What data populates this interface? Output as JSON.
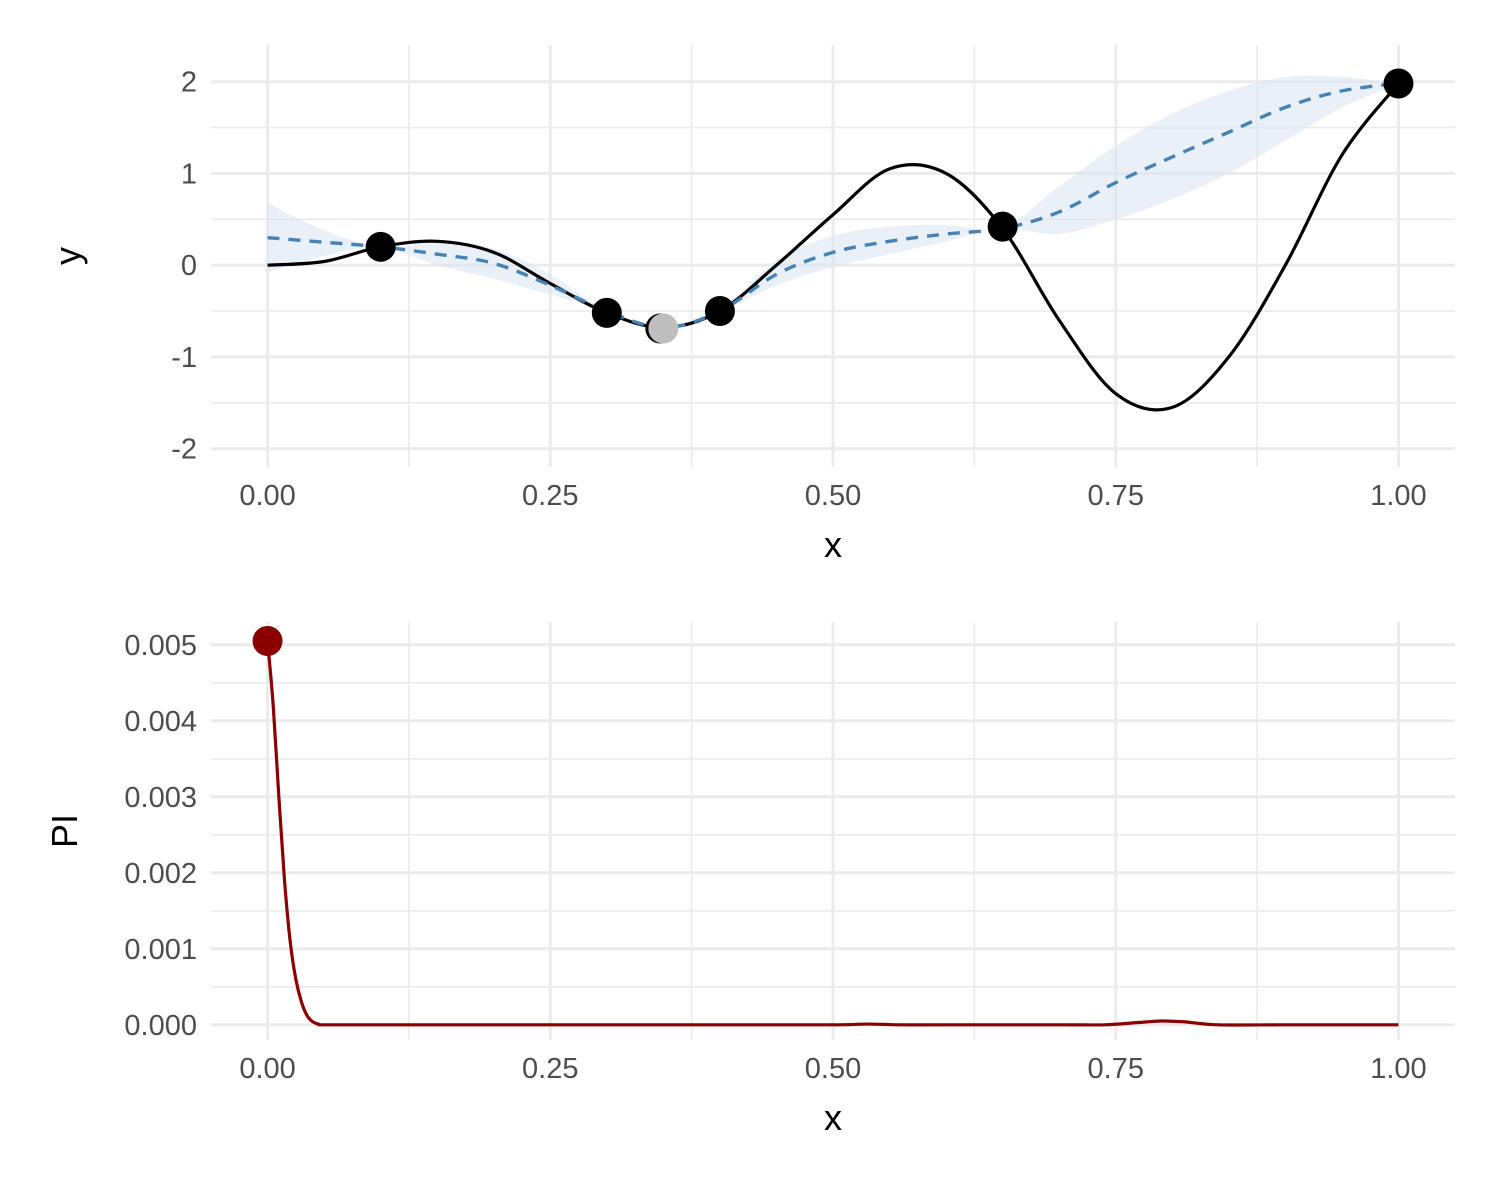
{
  "colors": {
    "background": "#ffffff",
    "grid": "#ebebeb",
    "true_function": "#000000",
    "gp_mean": "#4682b4",
    "gp_band": "#dce6f4",
    "observed_point": "#000000",
    "candidate_point": "#bebebe",
    "pi_line": "#8b0000",
    "pi_point": "#8b0000"
  },
  "chart_data": [
    {
      "type": "line",
      "xlabel": "x",
      "ylabel": "y",
      "xlim": [
        -0.05,
        1.05
      ],
      "ylim": [
        -2.2,
        2.4
      ],
      "grid": true,
      "legend": "none",
      "x_ticks": [
        0,
        0.25,
        0.5,
        0.75,
        1
      ],
      "x_tick_labels": [
        "0.00",
        "0.25",
        "0.50",
        "0.75",
        "1.00"
      ],
      "y_ticks": [
        -2,
        -1,
        0,
        1,
        2
      ],
      "y_tick_labels": [
        "-2",
        "-1",
        "0",
        "1",
        "2"
      ],
      "true_function": {
        "x": [
          0,
          0.05,
          0.1,
          0.15,
          0.2,
          0.25,
          0.3,
          0.35,
          0.4,
          0.45,
          0.5,
          0.55,
          0.6,
          0.65,
          0.7,
          0.75,
          0.8,
          0.85,
          0.9,
          0.95,
          1
        ],
        "y": [
          0.0,
          0.04,
          0.2,
          0.26,
          0.14,
          -0.2,
          -0.52,
          -0.68,
          -0.5,
          0.0,
          0.55,
          1.05,
          1.0,
          0.4,
          -0.6,
          -1.4,
          -1.55,
          -1.0,
          0.0,
          1.2,
          1.98
        ]
      },
      "gp_mean": {
        "x": [
          0,
          0.05,
          0.1,
          0.15,
          0.2,
          0.25,
          0.3,
          0.35,
          0.4,
          0.45,
          0.5,
          0.55,
          0.6,
          0.65,
          0.7,
          0.75,
          0.8,
          0.85,
          0.9,
          0.95,
          1
        ],
        "y": [
          0.3,
          0.25,
          0.2,
          0.12,
          0.02,
          -0.22,
          -0.5,
          -0.68,
          -0.5,
          -0.1,
          0.14,
          0.26,
          0.34,
          0.4,
          0.58,
          0.9,
          1.18,
          1.45,
          1.72,
          1.9,
          1.98
        ]
      },
      "gp_band": {
        "x": [
          0,
          0.05,
          0.1,
          0.15,
          0.2,
          0.25,
          0.3,
          0.35,
          0.4,
          0.45,
          0.5,
          0.55,
          0.6,
          0.65,
          0.7,
          0.75,
          0.8,
          0.85,
          0.9,
          0.95,
          1
        ],
        "lower": [
          -0.08,
          0.1,
          0.2,
          0.0,
          -0.15,
          -0.32,
          -0.5,
          -0.68,
          -0.5,
          -0.22,
          -0.02,
          0.12,
          0.26,
          0.4,
          0.34,
          0.5,
          0.72,
          1.0,
          1.36,
          1.72,
          1.98
        ],
        "upper": [
          0.68,
          0.38,
          0.2,
          0.24,
          0.18,
          -0.1,
          -0.5,
          -0.68,
          -0.5,
          0.05,
          0.32,
          0.42,
          0.44,
          0.4,
          0.86,
          1.3,
          1.65,
          1.9,
          2.05,
          2.05,
          1.98
        ]
      },
      "observed_points": {
        "x": [
          0.1,
          0.3,
          0.4,
          0.65,
          1.0
        ],
        "y": [
          0.2,
          -0.52,
          -0.5,
          0.42,
          1.98
        ]
      },
      "candidate_point": {
        "x": 0.35,
        "y": -0.69
      }
    },
    {
      "type": "line",
      "xlabel": "x",
      "ylabel": "PI",
      "xlim": [
        -0.05,
        1.05
      ],
      "ylim": [
        -0.0002,
        0.0053
      ],
      "grid": true,
      "legend": "none",
      "x_ticks": [
        0,
        0.25,
        0.5,
        0.75,
        1
      ],
      "x_tick_labels": [
        "0.00",
        "0.25",
        "0.50",
        "0.75",
        "1.00"
      ],
      "y_ticks": [
        0,
        0.001,
        0.002,
        0.003,
        0.004,
        0.005
      ],
      "y_tick_labels": [
        "0.000",
        "0.001",
        "0.002",
        "0.003",
        "0.004",
        "0.005"
      ],
      "series": [
        {
          "x": [
            0,
            0.005,
            0.01,
            0.015,
            0.02,
            0.025,
            0.03,
            0.035,
            0.04,
            0.045,
            0.05,
            0.1,
            0.2,
            0.3,
            0.4,
            0.5,
            0.53,
            0.56,
            0.6,
            0.7,
            0.74,
            0.77,
            0.79,
            0.81,
            0.84,
            0.9,
            1.0
          ],
          "y": [
            0.00505,
            0.0042,
            0.003,
            0.0019,
            0.0011,
            0.0006,
            0.0003,
            0.00012,
            4e-05,
            1e-05,
            0,
            0,
            0,
            0,
            0,
            0,
            1e-05,
            0,
            0,
            0,
            0,
            3e-05,
            5e-05,
            4e-05,
            0,
            0,
            0
          ]
        }
      ],
      "max_point": {
        "x": 0,
        "y": 0.00505
      }
    }
  ]
}
